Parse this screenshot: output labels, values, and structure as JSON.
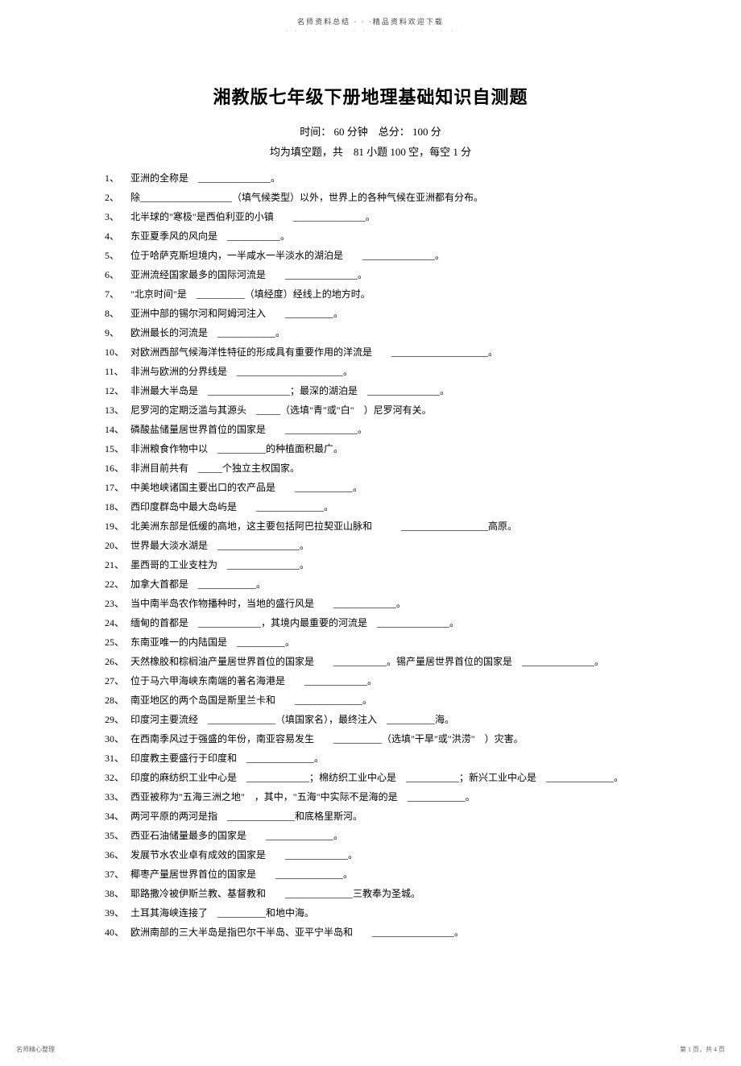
{
  "header": {
    "text": "名师资料总结 · · ·精品资料欢迎下载",
    "dots": "· · · · · · · · · · · · · · · · · ·"
  },
  "title": "湘教版七年级下册地理基础知识自测题",
  "subtitle": "时间： 60 分钟　总分： 100 分",
  "instruction": "均为填空题，共　81 小题 100 空，每空 1 分",
  "questions": [
    {
      "num": "1、",
      "text": "亚洲的全称是　_______________。"
    },
    {
      "num": "2、",
      "text": "除___________________（填气候类型）以外，世界上的各种气候在亚洲都有分布。"
    },
    {
      "num": "3、",
      "text": "北半球的\"寒极\"是西伯利亚的小镇　　_______________。"
    },
    {
      "num": "4、",
      "text": "东亚夏季风的风向是　___________。"
    },
    {
      "num": "5、",
      "text": "位于哈萨克斯坦境内，一半咸水一半淡水的湖泊是　　_______________。"
    },
    {
      "num": "6、",
      "text": "亚洲流经国家最多的国际河流是　　_______________。"
    },
    {
      "num": "7、",
      "text": "\"北京时间\"是　__________（填经度）经线上的地方时。"
    },
    {
      "num": "8、",
      "text": "亚洲中部的锡尔河和阿姆河注入　　__________。"
    },
    {
      "num": "9、",
      "text": "欧洲最长的河流是　____________。"
    },
    {
      "num": "10、",
      "text": "对欧洲西部气候海洋性特征的形成具有重要作用的洋流是　　____________________。"
    },
    {
      "num": "11、",
      "text": "非洲与欧洲的分界线是　______________________。"
    },
    {
      "num": "12、",
      "text": "非洲最大半岛是　_________________；最深的湖泊是　_______________。"
    },
    {
      "num": "13、",
      "text": "尼罗河的定期泛滥与其源头　_____（选填\"青\"或\"白\"　）尼罗河有关。"
    },
    {
      "num": "14、",
      "text": "磷酸盐储量居世界首位的国家是　　_______________。"
    },
    {
      "num": "15、",
      "text": "非洲粮食作物中以　__________的种植面积最广。"
    },
    {
      "num": "16、",
      "text": "非洲目前共有　_____个独立主权国家。"
    },
    {
      "num": "17、",
      "text": "中美地峡诸国主要出口的农产品是　　____________。"
    },
    {
      "num": "18、",
      "text": "西印度群岛中最大岛屿是　　______________。"
    },
    {
      "num": "19、",
      "text": "北美洲东部是低缓的高地，这主要包括阿巴拉契亚山脉和　　　__________________高原。"
    },
    {
      "num": "20、",
      "text": "世界最大淡水湖是　_________________。"
    },
    {
      "num": "21、",
      "text": "墨西哥的工业支柱为　_______________。"
    },
    {
      "num": "22、",
      "text": "加拿大首都是　____________。"
    },
    {
      "num": "23、",
      "text": "当中南半岛农作物播种时，当地的盛行风是　　_____________。"
    },
    {
      "num": "24、",
      "text": "缅甸的首都是　_____________，其境内最重要的河流是　_______________。"
    },
    {
      "num": "25、",
      "text": "东南亚唯一的内陆国是　__________。"
    },
    {
      "num": "26、",
      "text": "天然橡胶和棕榈油产量居世界首位的国家是　　___________。锡产量居世界首位的国家是　_______________。"
    },
    {
      "num": "27、",
      "text": "位于马六甲海峡东南端的著名海港是　　_____________。"
    },
    {
      "num": "28、",
      "text": "南亚地区的两个岛国是斯里兰卡和　　______________。"
    },
    {
      "num": "29、",
      "text": "印度河主要流经　______________（填国家名），最终注入　__________海。"
    },
    {
      "num": "30、",
      "text": "在西南季风过于强盛的年份，南亚容易发生　　__________（选填\"干旱\"或\"洪涝\"　）灾害。"
    },
    {
      "num": "31、",
      "text": "印度教主要盛行于印度和　______________。"
    },
    {
      "num": "32、",
      "text": "印度的麻纺织工业中心是　_____________；棉纺织工业中心是　___________；新兴工业中心是　______________。"
    },
    {
      "num": "33、",
      "text": "西亚被称为\"五海三洲之地\"　，其中，\"五海\"中实际不是海的是　____________。"
    },
    {
      "num": "34、",
      "text": "两河平原的两河是指　______________和底格里斯河。"
    },
    {
      "num": "35、",
      "text": "西亚石油储量最多的国家是　　______________。"
    },
    {
      "num": "36、",
      "text": "发展节水农业卓有成效的国家是　　_____________。"
    },
    {
      "num": "37、",
      "text": "椰枣产量居世界首位的国家是　　______________。"
    },
    {
      "num": "38、",
      "text": "耶路撒冷被伊斯兰教、基督教和　　______________三教奉为圣城。"
    },
    {
      "num": "39、",
      "text": "土耳其海峡连接了　__________和地中海。"
    },
    {
      "num": "40、",
      "text": "欧洲南部的三大半岛是指巴尔干半岛、亚平宁半岛和　　_________________。"
    }
  ],
  "footer": {
    "left": "名师精心整理",
    "right": "第 1 页，共 4 页",
    "dots": "· · · · · · · · ·"
  },
  "colors": {
    "background": "#ffffff",
    "text": "#000000",
    "header_text": "#444444",
    "footer_text": "#666666"
  },
  "typography": {
    "body_font": "SimSun",
    "title_fontsize": 22,
    "body_fontsize": 12,
    "header_fontsize": 9,
    "footer_fontsize": 8
  }
}
